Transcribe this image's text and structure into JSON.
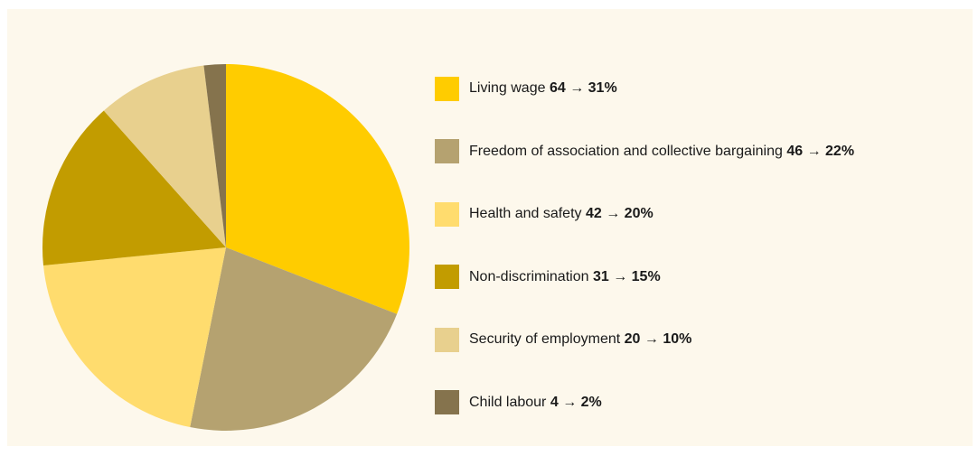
{
  "chart_data": {
    "type": "pie",
    "slices": [
      {
        "label": "Living wage",
        "count": 64,
        "percent": 31,
        "display": "64 → 31%",
        "color": "#ffcc00"
      },
      {
        "label": "Freedom of association and collective bargaining",
        "count": 46,
        "percent": 22,
        "display": "46 → 22%",
        "color": "#b5a270"
      },
      {
        "label": "Health and safety",
        "count": 42,
        "percent": 20,
        "display": "42 → 20%",
        "color": "#ffdc6e"
      },
      {
        "label": "Non-discrimination",
        "count": 31,
        "percent": 15,
        "display": "31 → 15%",
        "color": "#c29c00"
      },
      {
        "label": "Security of employment",
        "count": 20,
        "percent": 10,
        "display": "20 → 10%",
        "color": "#e8d08e"
      },
      {
        "label": "Child labour",
        "count": 4,
        "percent": 2,
        "display": "4 → 2%",
        "color": "#85734d"
      }
    ],
    "legend_position": "right",
    "background": "#fdf8ec"
  }
}
